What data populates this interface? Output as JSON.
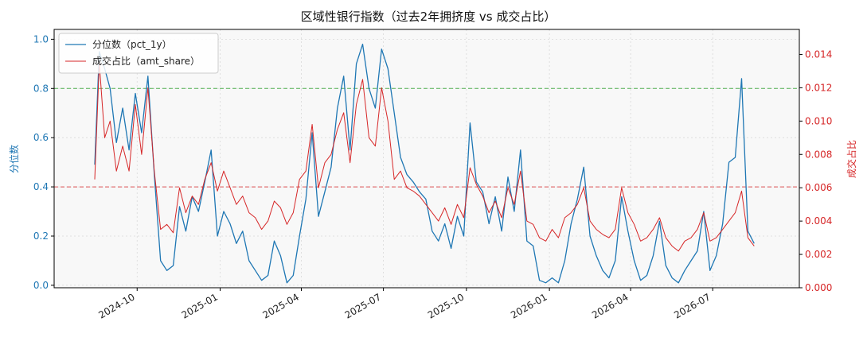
{
  "chart_data": {
    "type": "line",
    "title": "区域性银行指数（过去2年拥挤度 vs 成交占比）",
    "x_axis": {
      "type": "date",
      "range": [
        "2024-07-01",
        "2026-10-05"
      ],
      "ticks": [
        "2024-10",
        "2025-01",
        "2025-04",
        "2025-07",
        "2025-10",
        "2026-01",
        "2026-04",
        "2026-07"
      ],
      "tick_dates": [
        "2024-10-01",
        "2025-01-01",
        "2025-04-01",
        "2025-07-01",
        "2025-10-01",
        "2026-01-01",
        "2026-04-01",
        "2026-07-01"
      ]
    },
    "y_left": {
      "label": "分位数",
      "color": "#1f77b4",
      "range": [
        -0.01,
        1.04
      ],
      "ticks": [
        "0.0",
        "0.2",
        "0.4",
        "0.6",
        "0.8",
        "1.0"
      ],
      "tick_values": [
        0.0,
        0.2,
        0.4,
        0.6,
        0.8,
        1.0
      ]
    },
    "y_right": {
      "label": "成交占比",
      "color": "#d62728",
      "range": [
        0.0,
        0.0155
      ],
      "ticks": [
        "0.000",
        "0.002",
        "0.004",
        "0.006",
        "0.008",
        "0.010",
        "0.012",
        "0.014"
      ],
      "tick_values": [
        0.0,
        0.002,
        0.004,
        0.006,
        0.008,
        0.01,
        0.012,
        0.014
      ]
    },
    "reference_lines": [
      {
        "axis": "left",
        "value": 0.8,
        "color": "#2ca02c",
        "style": "dashed"
      },
      {
        "axis": "left",
        "value": 0.4,
        "color": "#d62728",
        "style": "dashed"
      }
    ],
    "grid": true,
    "legend_position": "top-left",
    "series": [
      {
        "name": "分位数（pct_1y）",
        "axis": "left",
        "color": "#1f77b4",
        "x": [
          "2024-08-15",
          "2024-08-20",
          "2024-08-26",
          "2024-09-01",
          "2024-09-08",
          "2024-09-15",
          "2024-09-22",
          "2024-09-29",
          "2024-10-06",
          "2024-10-13",
          "2024-10-20",
          "2024-10-27",
          "2024-11-03",
          "2024-11-10",
          "2024-11-17",
          "2024-11-24",
          "2024-12-01",
          "2024-12-08",
          "2024-12-15",
          "2024-12-22",
          "2024-12-29",
          "2025-01-05",
          "2025-01-12",
          "2025-01-19",
          "2025-01-26",
          "2025-02-02",
          "2025-02-09",
          "2025-02-16",
          "2025-02-23",
          "2025-03-02",
          "2025-03-09",
          "2025-03-16",
          "2025-03-23",
          "2025-03-30",
          "2025-04-06",
          "2025-04-13",
          "2025-04-20",
          "2025-04-27",
          "2025-05-04",
          "2025-05-11",
          "2025-05-18",
          "2025-05-25",
          "2025-06-01",
          "2025-06-08",
          "2025-06-15",
          "2025-06-22",
          "2025-06-29",
          "2025-07-06",
          "2025-07-13",
          "2025-07-20",
          "2025-07-27",
          "2025-08-03",
          "2025-08-10",
          "2025-08-17",
          "2025-08-24",
          "2025-08-31",
          "2025-09-07",
          "2025-09-14",
          "2025-09-21",
          "2025-09-28",
          "2025-10-05",
          "2025-10-12",
          "2025-10-19",
          "2025-10-26",
          "2025-11-02",
          "2025-11-09",
          "2025-11-16",
          "2025-11-23",
          "2025-11-30",
          "2025-12-07",
          "2025-12-14",
          "2025-12-21",
          "2025-12-28",
          "2026-01-04",
          "2026-01-11",
          "2026-01-18",
          "2026-01-25",
          "2026-02-01",
          "2026-02-08",
          "2026-02-15",
          "2026-02-22",
          "2026-03-01",
          "2026-03-08",
          "2026-03-15",
          "2026-03-22",
          "2026-03-29",
          "2026-04-05",
          "2026-04-12",
          "2026-04-19",
          "2026-04-26",
          "2026-05-03",
          "2026-05-10",
          "2026-05-17",
          "2026-05-24",
          "2026-05-31",
          "2026-06-07",
          "2026-06-14",
          "2026-06-21",
          "2026-06-28",
          "2026-07-05",
          "2026-07-12",
          "2026-07-19",
          "2026-07-26",
          "2026-08-02",
          "2026-08-09",
          "2026-08-16"
        ],
        "values": [
          0.49,
          0.95,
          0.88,
          0.8,
          0.58,
          0.72,
          0.55,
          0.78,
          0.62,
          0.85,
          0.45,
          0.1,
          0.06,
          0.08,
          0.32,
          0.22,
          0.36,
          0.3,
          0.42,
          0.55,
          0.2,
          0.3,
          0.25,
          0.17,
          0.22,
          0.1,
          0.06,
          0.02,
          0.04,
          0.18,
          0.12,
          0.01,
          0.04,
          0.2,
          0.35,
          0.62,
          0.28,
          0.38,
          0.48,
          0.72,
          0.85,
          0.55,
          0.9,
          0.98,
          0.8,
          0.72,
          0.96,
          0.88,
          0.7,
          0.52,
          0.45,
          0.42,
          0.38,
          0.35,
          0.22,
          0.18,
          0.25,
          0.15,
          0.28,
          0.2,
          0.66,
          0.42,
          0.38,
          0.25,
          0.36,
          0.22,
          0.44,
          0.3,
          0.55,
          0.18,
          0.16,
          0.02,
          0.01,
          0.03,
          0.01,
          0.1,
          0.25,
          0.35,
          0.48,
          0.2,
          0.12,
          0.06,
          0.03,
          0.1,
          0.36,
          0.22,
          0.1,
          0.02,
          0.04,
          0.12,
          0.26,
          0.08,
          0.03,
          0.01,
          0.06,
          0.1,
          0.14,
          0.3,
          0.06,
          0.12,
          0.25,
          0.5,
          0.52,
          0.84,
          0.22,
          0.17
        ]
      },
      {
        "name": "成交占比（amt_share）",
        "axis": "right",
        "color": "#d62728",
        "x": [
          "2024-08-15",
          "2024-08-20",
          "2024-08-26",
          "2024-09-01",
          "2024-09-08",
          "2024-09-15",
          "2024-09-22",
          "2024-09-29",
          "2024-10-06",
          "2024-10-13",
          "2024-10-20",
          "2024-10-27",
          "2024-11-03",
          "2024-11-10",
          "2024-11-17",
          "2024-11-24",
          "2024-12-01",
          "2024-12-08",
          "2024-12-15",
          "2024-12-22",
          "2024-12-29",
          "2025-01-05",
          "2025-01-12",
          "2025-01-19",
          "2025-01-26",
          "2025-02-02",
          "2025-02-09",
          "2025-02-16",
          "2025-02-23",
          "2025-03-02",
          "2025-03-09",
          "2025-03-16",
          "2025-03-23",
          "2025-03-30",
          "2025-04-06",
          "2025-04-13",
          "2025-04-20",
          "2025-04-27",
          "2025-05-04",
          "2025-05-11",
          "2025-05-18",
          "2025-05-25",
          "2025-06-01",
          "2025-06-08",
          "2025-06-15",
          "2025-06-22",
          "2025-06-29",
          "2025-07-06",
          "2025-07-13",
          "2025-07-20",
          "2025-07-27",
          "2025-08-03",
          "2025-08-10",
          "2025-08-17",
          "2025-08-24",
          "2025-08-31",
          "2025-09-07",
          "2025-09-14",
          "2025-09-21",
          "2025-09-28",
          "2025-10-05",
          "2025-10-12",
          "2025-10-19",
          "2025-10-26",
          "2025-11-02",
          "2025-11-09",
          "2025-11-16",
          "2025-11-23",
          "2025-11-30",
          "2025-12-07",
          "2025-12-14",
          "2025-12-21",
          "2025-12-28",
          "2026-01-04",
          "2026-01-11",
          "2026-01-18",
          "2026-01-25",
          "2026-02-01",
          "2026-02-08",
          "2026-02-15",
          "2026-02-22",
          "2026-03-01",
          "2026-03-08",
          "2026-03-15",
          "2026-03-22",
          "2026-03-29",
          "2026-04-05",
          "2026-04-12",
          "2026-04-19",
          "2026-04-26",
          "2026-05-03",
          "2026-05-10",
          "2026-05-17",
          "2026-05-24",
          "2026-05-31",
          "2026-06-07",
          "2026-06-14",
          "2026-06-21",
          "2026-06-28",
          "2026-07-05",
          "2026-07-12",
          "2026-07-19",
          "2026-07-26",
          "2026-08-02",
          "2026-08-09",
          "2026-08-16"
        ],
        "values": [
          0.0065,
          0.0135,
          0.009,
          0.01,
          0.007,
          0.0085,
          0.007,
          0.011,
          0.008,
          0.012,
          0.007,
          0.0035,
          0.0038,
          0.0033,
          0.006,
          0.0045,
          0.0055,
          0.005,
          0.0065,
          0.0075,
          0.0058,
          0.007,
          0.006,
          0.005,
          0.0055,
          0.0045,
          0.0042,
          0.0035,
          0.004,
          0.0052,
          0.0048,
          0.0038,
          0.0045,
          0.0065,
          0.007,
          0.0098,
          0.006,
          0.0075,
          0.008,
          0.0095,
          0.0105,
          0.0075,
          0.011,
          0.0125,
          0.009,
          0.0085,
          0.012,
          0.01,
          0.0065,
          0.007,
          0.006,
          0.0058,
          0.0055,
          0.005,
          0.0045,
          0.004,
          0.0048,
          0.0038,
          0.005,
          0.0042,
          0.0072,
          0.0062,
          0.0055,
          0.0045,
          0.0052,
          0.0042,
          0.006,
          0.005,
          0.007,
          0.004,
          0.0038,
          0.003,
          0.0028,
          0.0035,
          0.003,
          0.0042,
          0.0045,
          0.005,
          0.006,
          0.004,
          0.0035,
          0.0032,
          0.003,
          0.0035,
          0.006,
          0.0045,
          0.0038,
          0.0028,
          0.003,
          0.0035,
          0.0042,
          0.003,
          0.0025,
          0.0022,
          0.0028,
          0.003,
          0.0035,
          0.0045,
          0.0028,
          0.003,
          0.0035,
          0.004,
          0.0045,
          0.0058,
          0.003,
          0.0025
        ]
      }
    ]
  }
}
